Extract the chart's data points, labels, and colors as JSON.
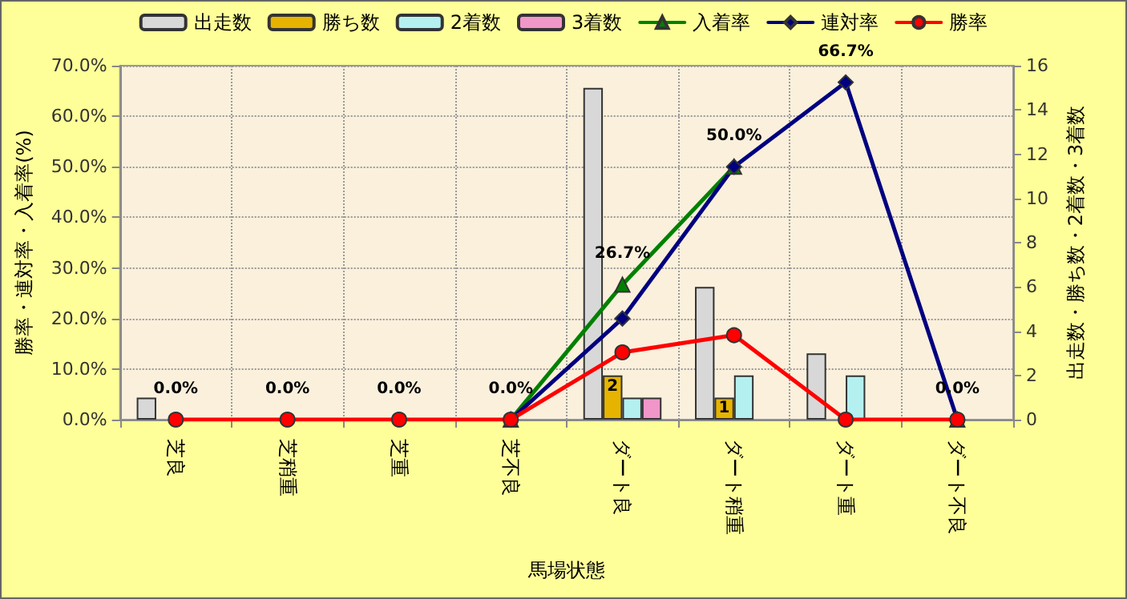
{
  "chart_data": {
    "type": "bar",
    "xlabel": "馬場状態",
    "ylabel": "勝率・連対率・入着率(%)",
    "y2label": "出走数・勝ち数・2着数・3着数",
    "categories": [
      "芝良",
      "芝稍重",
      "芝重",
      "芝不良",
      "ダート良",
      "ダート稍重",
      "ダート重",
      "ダート不良"
    ],
    "series": [
      {
        "name": "出走数",
        "axis": "y2",
        "color": "#d8d8d8",
        "values": [
          1,
          0,
          0,
          0,
          15,
          6,
          3,
          0
        ]
      },
      {
        "name": "勝ち数",
        "axis": "y2",
        "color": "#e6b400",
        "values": [
          0,
          0,
          0,
          0,
          2,
          1,
          0,
          0
        ],
        "value_labels": [
          null,
          null,
          null,
          null,
          "2",
          "1",
          null,
          null
        ]
      },
      {
        "name": "2着数",
        "axis": "y2",
        "color": "#b4f0f0",
        "values": [
          0,
          0,
          0,
          0,
          1,
          2,
          2,
          0
        ]
      },
      {
        "name": "3着数",
        "axis": "y2",
        "color": "#f096c8",
        "values": [
          0,
          0,
          0,
          0,
          1,
          0,
          0,
          0
        ]
      },
      {
        "name": "入着率",
        "type": "line",
        "color": "#008000",
        "marker": "triangle",
        "values": [
          null,
          null,
          null,
          0,
          26.7,
          50.0,
          null,
          0
        ],
        "value_labels": [
          null,
          null,
          null,
          null,
          "26.7%",
          "50.0%",
          null,
          null
        ]
      },
      {
        "name": "連対率",
        "type": "line",
        "color": "#000080",
        "marker": "diamond",
        "values": [
          null,
          null,
          null,
          0,
          20.0,
          50.0,
          66.7,
          0
        ],
        "value_labels": [
          null,
          null,
          null,
          null,
          null,
          null,
          "66.7%",
          null
        ]
      },
      {
        "name": "勝率",
        "type": "line",
        "color": "#ff0000",
        "marker": "circle",
        "values": [
          0,
          0,
          0,
          0,
          13.3,
          16.7,
          0,
          0
        ],
        "value_labels": [
          "0.0%",
          "0.0%",
          "0.0%",
          "0.0%",
          null,
          null,
          null,
          "0.0%"
        ]
      }
    ],
    "ylim": [
      0,
      70
    ],
    "yticks": [
      {
        "value": 0,
        "label": "0.0%"
      },
      {
        "value": 10,
        "label": "10.0%"
      },
      {
        "value": 20,
        "label": "20.0%"
      },
      {
        "value": 30,
        "label": "30.0%"
      },
      {
        "value": 40,
        "label": "40.0%"
      },
      {
        "value": 50,
        "label": "50.0%"
      },
      {
        "value": 60,
        "label": "60.0%"
      },
      {
        "value": 70,
        "label": "70.0%"
      }
    ],
    "y2lim": [
      0,
      16
    ],
    "y2ticks": [
      0,
      2,
      4,
      6,
      8,
      10,
      12,
      14,
      16
    ],
    "grid": true,
    "legend": "top",
    "line_style": "solid"
  }
}
